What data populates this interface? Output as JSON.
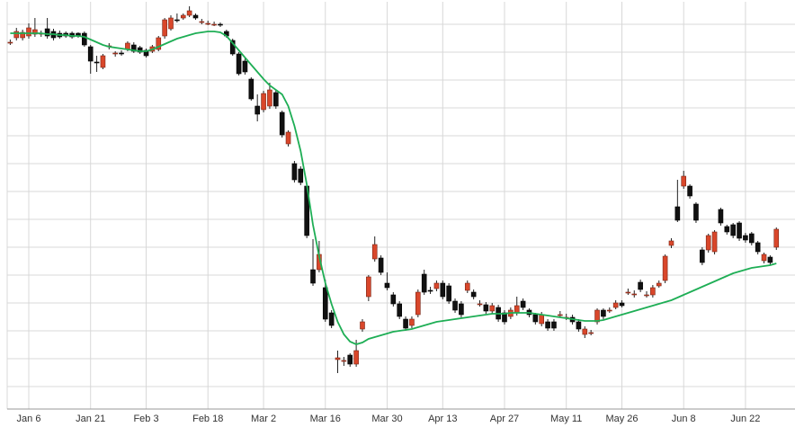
{
  "chart_data": {
    "type": "candlestick",
    "categories": [
      null,
      null,
      null,
      "Jan 6",
      null,
      null,
      null,
      null,
      null,
      null,
      null,
      null,
      null,
      "Jan 21",
      null,
      null,
      null,
      null,
      null,
      null,
      null,
      null,
      "Feb 3",
      null,
      null,
      null,
      null,
      null,
      null,
      null,
      null,
      null,
      "Feb 18",
      null,
      null,
      null,
      null,
      null,
      null,
      null,
      null,
      "Mar 2",
      null,
      null,
      null,
      null,
      null,
      null,
      null,
      null,
      null,
      "Mar 16",
      null,
      null,
      null,
      null,
      null,
      null,
      null,
      null,
      null,
      "Mar 30",
      null,
      null,
      null,
      null,
      null,
      null,
      null,
      null,
      "Apr 13",
      null,
      null,
      null,
      null,
      null,
      null,
      null,
      null,
      null,
      "Apr 27",
      null,
      null,
      null,
      null,
      null,
      null,
      null,
      null,
      null,
      "May 11",
      null,
      null,
      null,
      null,
      null,
      null,
      null,
      null,
      "May 26",
      null,
      null,
      null,
      null,
      null,
      null,
      null,
      null,
      null,
      "Jun 8",
      null,
      null,
      null,
      null,
      null,
      null,
      null,
      null,
      null,
      "Jun 22",
      null,
      null,
      null,
      null,
      null
    ],
    "open": [
      414,
      419,
      419,
      421,
      423,
      423,
      429,
      426,
      424,
      424,
      424,
      424,
      424,
      409,
      392,
      386,
      409,
      401,
      402,
      406,
      411,
      408,
      405,
      404,
      406,
      421,
      429,
      439,
      441,
      444,
      444,
      437,
      435,
      434,
      434,
      426,
      416,
      401,
      393,
      373,
      343,
      339,
      343,
      358,
      336,
      301,
      279,
      273,
      254,
      161,
      161,
      141,
      113,
      61,
      60,
      66,
      56,
      95,
      131,
      173,
      174,
      146,
      133,
      123,
      106,
      99,
      111,
      156,
      138,
      140,
      146,
      143,
      126,
      123,
      138,
      136,
      123,
      122,
      115,
      119,
      113,
      109,
      113,
      126,
      116,
      111,
      101,
      103,
      103,
      111,
      108,
      108,
      103,
      89,
      91,
      103,
      116,
      116,
      119,
      124,
      136,
      134,
      147,
      133,
      133,
      143,
      149,
      188,
      231,
      254,
      254,
      234,
      183,
      183,
      181,
      228,
      209,
      211,
      213,
      199,
      201,
      191,
      171,
      175,
      186
    ],
    "high": [
      417,
      430,
      428,
      435,
      441,
      427,
      441,
      429,
      427,
      426,
      426,
      425,
      426,
      411,
      399,
      401,
      413,
      404,
      405,
      415,
      414,
      410,
      407,
      411,
      421,
      441,
      444,
      446,
      446,
      454,
      446,
      440,
      438,
      437,
      436,
      428,
      418,
      403,
      396,
      375,
      356,
      360,
      369,
      361,
      338,
      316,
      282,
      276,
      256,
      195,
      193,
      150,
      116,
      71,
      64,
      68,
      83,
      106,
      155,
      198,
      177,
      158,
      136,
      126,
      109,
      109,
      139,
      161,
      142,
      149,
      149,
      146,
      129,
      126,
      149,
      139,
      127,
      125,
      124,
      122,
      116,
      119,
      131,
      129,
      118,
      113,
      114,
      106,
      106,
      115,
      112,
      111,
      106,
      98,
      94,
      118,
      118,
      119,
      127,
      127,
      140,
      138,
      150,
      137,
      144,
      149,
      178,
      196,
      261,
      271,
      256,
      236,
      186,
      201,
      205,
      230,
      211,
      213,
      215,
      202,
      203,
      193,
      180,
      177,
      208
    ],
    "low": [
      411,
      416,
      416,
      418,
      420,
      420,
      418,
      416,
      418,
      419,
      418,
      419,
      409,
      379,
      381,
      384,
      406,
      398,
      399,
      404,
      402,
      401,
      397,
      402,
      404,
      418,
      427,
      436,
      439,
      442,
      439,
      434,
      433,
      432,
      431,
      419,
      399,
      377,
      378,
      349,
      326,
      336,
      340,
      340,
      308,
      298,
      258,
      255,
      196,
      143,
      158,
      103,
      96,
      46,
      54,
      53,
      53,
      92,
      126,
      170,
      155,
      138,
      120,
      106,
      93,
      96,
      108,
      133,
      134,
      137,
      128,
      123,
      113,
      108,
      135,
      128,
      120,
      112,
      112,
      103,
      100,
      106,
      110,
      116,
      108,
      100,
      98,
      93,
      93,
      108,
      105,
      100,
      92,
      85,
      88,
      100,
      106,
      113,
      117,
      119,
      133,
      130,
      136,
      130,
      130,
      141,
      146,
      185,
      214,
      251,
      240,
      213,
      166,
      180,
      178,
      210,
      200,
      196,
      193,
      191,
      188,
      178,
      168,
      166,
      183
    ],
    "close": [
      414,
      426,
      425,
      430,
      428,
      424,
      421,
      419,
      420,
      421,
      420,
      421,
      411,
      393,
      391,
      399,
      410,
      402,
      401,
      413,
      404,
      403,
      399,
      409,
      419,
      439,
      441,
      438,
      444,
      449,
      441,
      437,
      435,
      434,
      433,
      421,
      401,
      379,
      381,
      351,
      334,
      357,
      361,
      343,
      311,
      314,
      261,
      258,
      199,
      146,
      178,
      106,
      99,
      63,
      60,
      56,
      71,
      103,
      153,
      189,
      158,
      141,
      123,
      109,
      96,
      106,
      136,
      136,
      137,
      146,
      131,
      126,
      116,
      111,
      146,
      131,
      123,
      115,
      121,
      106,
      103,
      116,
      121,
      119,
      111,
      103,
      111,
      96,
      96,
      111,
      108,
      103,
      95,
      95,
      91,
      116,
      109,
      116,
      124,
      121,
      136,
      134,
      139,
      133,
      141,
      146,
      176,
      193,
      216,
      265,
      243,
      216,
      169,
      199,
      203,
      213,
      203,
      199,
      196,
      194,
      191,
      181,
      178,
      169,
      206
    ],
    "up_color": "#d9472b",
    "down_color": "#111111",
    "ma": {
      "color": "#1eae55",
      "values": [
        424,
        424,
        424,
        424,
        424,
        424,
        423,
        423,
        422,
        422,
        421,
        421,
        420,
        417,
        414,
        411,
        409,
        408,
        407,
        406,
        405,
        404,
        404,
        406,
        409,
        412,
        415,
        418,
        420,
        422,
        424,
        425,
        426,
        426,
        425,
        421,
        413,
        405,
        397,
        389,
        381,
        373,
        366,
        361,
        356,
        343,
        321,
        293,
        256,
        211,
        176,
        146,
        123,
        103,
        89,
        81,
        78,
        80,
        84,
        86,
        88,
        90,
        92,
        93,
        94,
        95,
        97,
        99,
        101,
        103,
        104,
        105,
        106,
        107,
        108,
        109,
        110,
        111,
        112,
        112,
        112,
        113,
        113,
        113,
        113,
        112,
        111,
        110,
        109,
        108,
        107,
        106,
        105,
        104,
        104,
        104,
        105,
        107,
        109,
        111,
        113,
        115,
        117,
        119,
        121,
        123,
        125,
        127,
        130,
        133,
        136,
        139,
        142,
        145,
        148,
        151,
        154,
        157,
        159,
        161,
        163,
        164,
        165,
        166,
        168
      ]
    },
    "ylim": [
      0,
      459
    ],
    "yticks": [
      31,
      62,
      93,
      124,
      155,
      186,
      217,
      248,
      279,
      310,
      341,
      372,
      403,
      434
    ],
    "grid": true
  }
}
